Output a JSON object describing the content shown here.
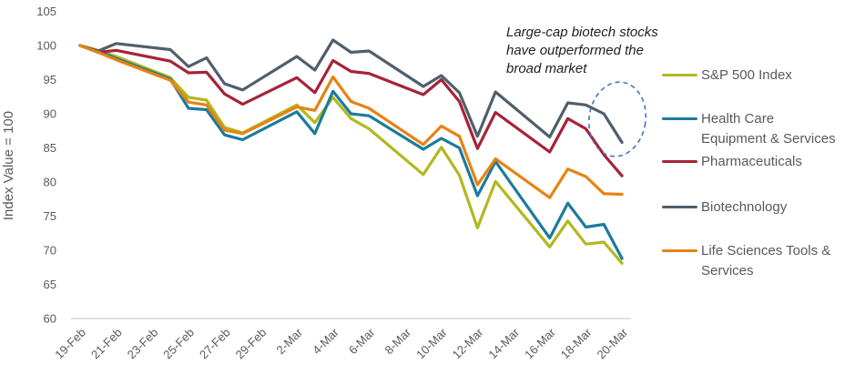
{
  "y_axis": {
    "title": "Index Value = 100"
  },
  "annotation": {
    "line1": "Large-cap biotech stocks",
    "line2": "have outperformed the",
    "line3": "broad market"
  },
  "legend": {
    "items": [
      {
        "label_line1": "S&P 500 Index",
        "label_line2": "",
        "color": "#b2b821"
      },
      {
        "label_line1": "Health Care",
        "label_line2": "Equipment & Services",
        "color": "#1b7b9c"
      },
      {
        "label_line1": "Pharmaceuticals",
        "label_line2": "",
        "color": "#a52338"
      },
      {
        "label_line1": "Biotechnology",
        "label_line2": "",
        "color": "#505f6b"
      },
      {
        "label_line1": "Life Sciences Tools &",
        "label_line2": "Services",
        "color": "#e88211"
      }
    ]
  },
  "chart_data": {
    "type": "line",
    "title": "",
    "xlabel": "",
    "ylabel": "Index Value = 100",
    "ylim": [
      60,
      105
    ],
    "ytick_step": 5,
    "grid": false,
    "legend_position": "right",
    "x_tick_labels": [
      "19-Feb",
      "21-Feb",
      "23-Feb",
      "25-Feb",
      "27-Feb",
      "29-Feb",
      "2-Mar",
      "4-Mar",
      "6-Mar",
      "8-Mar",
      "10-Mar",
      "12-Mar",
      "14-Mar",
      "16-Mar",
      "18-Mar",
      "20-Mar"
    ],
    "dates": [
      "19-Feb",
      "20-Feb",
      "21-Feb",
      "24-Feb",
      "25-Feb",
      "26-Feb",
      "27-Feb",
      "28-Feb",
      "2-Mar",
      "3-Mar",
      "4-Mar",
      "5-Mar",
      "6-Mar",
      "9-Mar",
      "10-Mar",
      "11-Mar",
      "12-Mar",
      "13-Mar",
      "16-Mar",
      "17-Mar",
      "18-Mar",
      "19-Mar",
      "20-Mar"
    ],
    "slots": [
      0,
      1,
      2,
      5,
      6,
      7,
      8,
      9,
      12,
      13,
      14,
      15,
      16,
      19,
      20,
      21,
      22,
      23,
      26,
      27,
      28,
      29,
      30
    ],
    "n_slots": 31,
    "series": [
      {
        "name": "S&P 500 Index",
        "color": "#b2b821",
        "values": [
          100,
          99.3,
          98.4,
          95.3,
          92.4,
          92.0,
          88.0,
          87.2,
          91.3,
          88.7,
          92.4,
          89.3,
          87.8,
          81.1,
          85.1,
          81.0,
          73.3,
          80.1,
          70.5,
          74.3,
          70.9,
          71.2,
          68.1
        ]
      },
      {
        "name": "Health Care Equipment & Services",
        "color": "#1b7b9c",
        "values": [
          100,
          99.2,
          98.1,
          95.1,
          90.8,
          90.6,
          86.9,
          86.2,
          90.3,
          87.1,
          93.3,
          90.0,
          89.7,
          84.8,
          86.4,
          85.0,
          78.0,
          83.0,
          71.8,
          76.9,
          73.4,
          73.8,
          68.8
        ]
      },
      {
        "name": "Pharmaceuticals",
        "color": "#a52338",
        "values": [
          100,
          99.0,
          99.3,
          97.7,
          96.0,
          96.1,
          92.9,
          91.4,
          95.3,
          93.1,
          97.8,
          96.2,
          95.9,
          92.8,
          95.0,
          91.8,
          84.9,
          90.2,
          84.4,
          89.3,
          87.8,
          84.0,
          80.9
        ]
      },
      {
        "name": "Biotechnology",
        "color": "#505f6b",
        "values": [
          100,
          99.2,
          100.3,
          99.4,
          96.9,
          98.2,
          94.4,
          93.5,
          98.4,
          96.4,
          100.8,
          99.0,
          99.2,
          94.0,
          95.6,
          93.1,
          86.7,
          93.2,
          86.6,
          91.6,
          91.3,
          90.0,
          85.8
        ]
      },
      {
        "name": "Life Sciences Tools & Services",
        "color": "#e88211",
        "values": [
          100,
          99.0,
          97.9,
          94.9,
          91.7,
          91.3,
          87.6,
          87.1,
          91.0,
          90.5,
          95.4,
          91.8,
          90.8,
          85.5,
          88.2,
          86.7,
          79.6,
          83.4,
          77.7,
          81.9,
          80.8,
          78.3,
          78.2
        ]
      }
    ],
    "annotation": "Large-cap biotech stocks have outperformed the broad market",
    "highlight": {
      "type": "dashed-ellipse",
      "around": "end of Biotechnology line (18-Mar to 20-Mar)",
      "color": "#4472c4"
    },
    "axis_line_color": "#d9d9d9",
    "tick_label_color": "#595959"
  }
}
